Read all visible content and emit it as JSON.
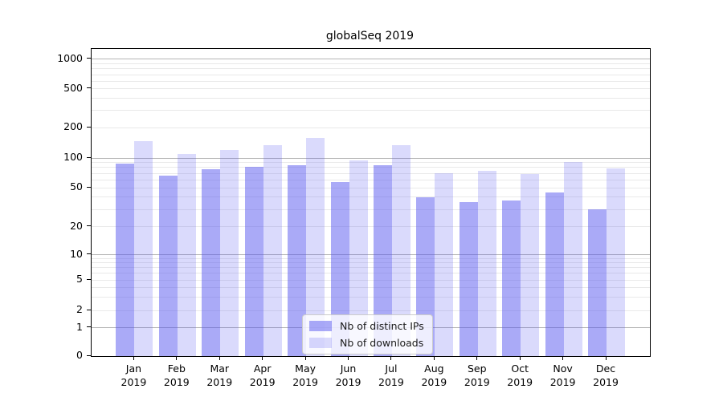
{
  "title": "globalSeq 2019",
  "colors": {
    "bar_base": "#5555f0",
    "series_dark": "rgba(85,85,240,0.5)",
    "series_light": "rgba(85,85,240,0.22)",
    "major_grid": "#b4b4b4",
    "minor_grid": "#e9e9e9",
    "spine": "#000000"
  },
  "chart_data": {
    "type": "bar",
    "title": "globalSeq 2019",
    "x_months": [
      "Jan",
      "Feb",
      "Mar",
      "Apr",
      "May",
      "Jun",
      "Jul",
      "Aug",
      "Sep",
      "Oct",
      "Nov",
      "Dec"
    ],
    "x_year": "2019",
    "categories": [
      "Jan 2019",
      "Feb 2019",
      "Mar 2019",
      "Apr 2019",
      "May 2019",
      "Jun 2019",
      "Jul 2019",
      "Aug 2019",
      "Sep 2019",
      "Oct 2019",
      "Nov 2019",
      "Dec 2019"
    ],
    "y_ticks": [
      0,
      1,
      2,
      5,
      10,
      20,
      50,
      100,
      200,
      500,
      1000
    ],
    "y_scale": "symlog",
    "ylim": [
      0,
      1150
    ],
    "grid": "horizontal, log major and minor lines",
    "legend_position": "lower center",
    "series": [
      {
        "name": "Nb of distinct IPs",
        "color": "rgba(85,85,240,0.5)",
        "values": [
          88,
          66,
          77,
          82,
          84,
          57,
          84,
          40,
          36,
          37,
          45,
          30
        ]
      },
      {
        "name": "Nb of downloads",
        "color": "rgba(85,85,240,0.22)",
        "values": [
          148,
          110,
          120,
          133,
          158,
          95,
          135,
          70,
          74,
          69,
          91,
          79
        ]
      }
    ]
  }
}
